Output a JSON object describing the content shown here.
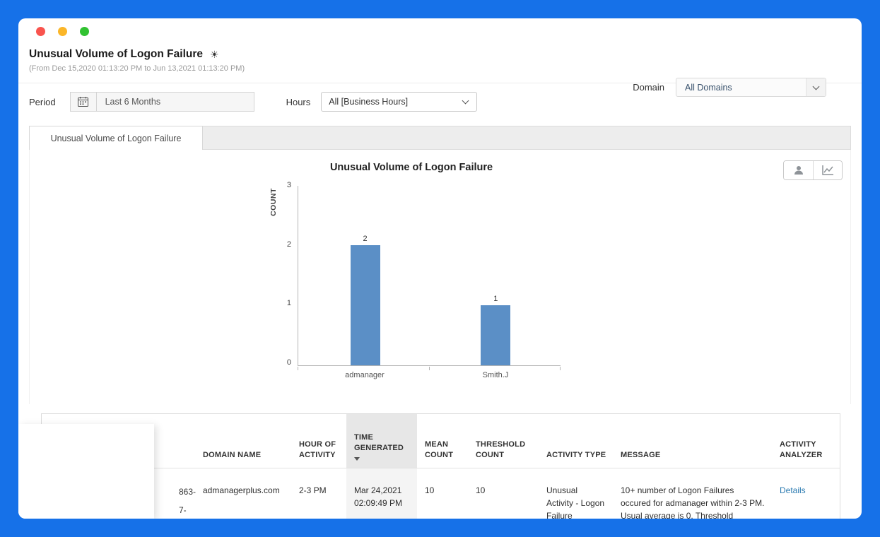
{
  "window": {
    "traffic_lights": {
      "close": "#f9544e",
      "minimize": "#fbb629",
      "maximize": "#31c231"
    }
  },
  "header": {
    "title": "Unusual Volume of Logon Failure",
    "date_range": "(From Dec 15,2020 01:13:20 PM to Jun 13,2021 01:13:20 PM)",
    "settings_icon": "☀",
    "domain": {
      "label": "Domain",
      "value": "All Domains"
    }
  },
  "filters": {
    "period": {
      "label": "Period",
      "value": "Last 6 Months"
    },
    "hours": {
      "label": "Hours",
      "value": "All [Business Hours]"
    }
  },
  "tab": {
    "label": "Unusual Volume of Logon Failure"
  },
  "chart_data": {
    "type": "bar",
    "title": "Unusual Volume of Logon Failure",
    "categories": [
      "admanager",
      "Smith.J"
    ],
    "values": [
      2,
      1
    ],
    "ylabel": "COUNT",
    "xlabel": "",
    "ylim": [
      0,
      3
    ],
    "yticks": [
      3,
      2,
      1,
      0
    ],
    "bar_color": "#5b8fc6",
    "grid": false,
    "legend": "none",
    "toolbar_icons": [
      "user-icon",
      "line-chart-icon"
    ]
  },
  "table": {
    "columns": [
      {
        "label": ""
      },
      {
        "label": "DOMAIN NAME"
      },
      {
        "label": "HOUR OF ACTIVITY"
      },
      {
        "label": "TIME GENERATED",
        "sorted": "desc"
      },
      {
        "label": "MEAN COUNT"
      },
      {
        "label": "THRESHOLD COUNT"
      },
      {
        "label": "ACTIVITY TYPE"
      },
      {
        "label": "MESSAGE"
      },
      {
        "label": "ACTIVITY ANALYZER"
      }
    ],
    "row": {
      "alert_id_fragments": [
        "863-",
        "7-"
      ],
      "domain_name": "admanagerplus.com",
      "hour_of_activity": "2-3 PM",
      "time_generated": "Mar 24,2021 02:09:49 PM",
      "mean_count": "10",
      "threshold_count": "10",
      "activity_type": "Unusual Activity - Logon Failure",
      "message": "10+ number of Logon Failures occured for admanager within 2-3 PM. Usual average is 0, Threshold",
      "activity_analyzer": "Details"
    }
  }
}
